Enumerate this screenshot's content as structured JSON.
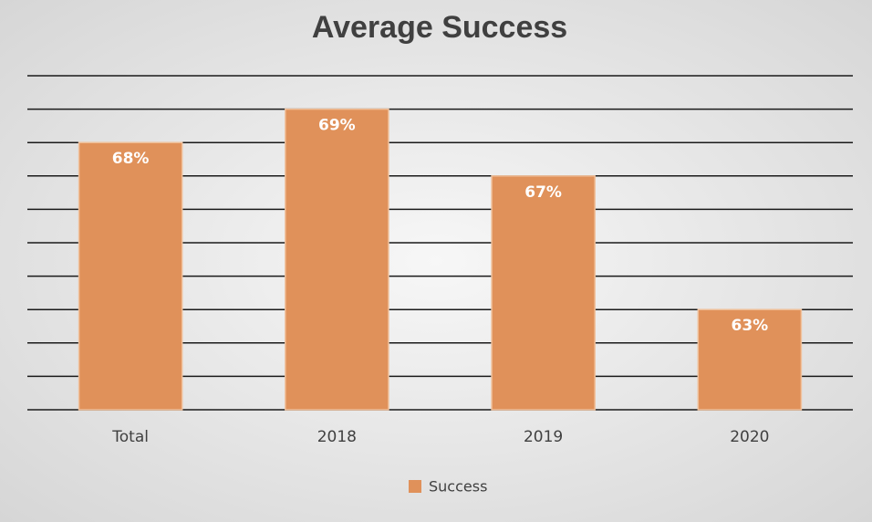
{
  "chart_data": {
    "type": "bar",
    "title": "Average Success",
    "categories": [
      "Total",
      "2018",
      "2019",
      "2020"
    ],
    "series": [
      {
        "name": "Success",
        "color": "#e0915a",
        "values": [
          68,
          69,
          67,
          63
        ],
        "value_labels": [
          "68%",
          "69%",
          "67%",
          "63%"
        ]
      }
    ],
    "ylim": [
      60,
      70
    ],
    "yticks": [
      60,
      61,
      62,
      63,
      64,
      65,
      66,
      67,
      68,
      69,
      70
    ],
    "grid": true,
    "legend": "bottom"
  }
}
